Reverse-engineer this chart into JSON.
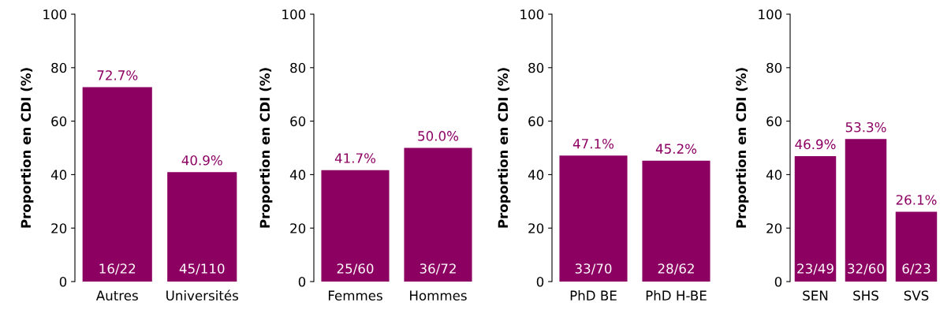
{
  "chart_data": [
    {
      "type": "bar",
      "ylabel": "Proportion en CDI (%)",
      "categories": [
        "Autres",
        "Universités"
      ],
      "values": [
        72.7,
        40.9
      ],
      "color": "#8c0062",
      "value_labels": [
        "72.7%",
        "40.9%"
      ],
      "ylim": [
        0,
        100
      ],
      "yticks": [
        0,
        20,
        40,
        60,
        80,
        100
      ],
      "grid": false,
      "legend": false,
      "annotations": [
        {
          "text": "16/22",
          "x": "Autres",
          "y": 0
        },
        {
          "text": "45/110",
          "x": "Universités",
          "y": 0
        }
      ]
    },
    {
      "type": "bar",
      "ylabel": "Proportion en CDI (%)",
      "categories": [
        "Femmes",
        "Hommes"
      ],
      "values": [
        41.7,
        50.0
      ],
      "color": "#8c0062",
      "value_labels": [
        "41.7%",
        "50.0%"
      ],
      "ylim": [
        0,
        100
      ],
      "yticks": [
        0,
        20,
        40,
        60,
        80,
        100
      ],
      "grid": false,
      "legend": false,
      "annotations": [
        {
          "text": "25/60",
          "x": "Femmes",
          "y": 0
        },
        {
          "text": "36/72",
          "x": "Hommes",
          "y": 0
        }
      ]
    },
    {
      "type": "bar",
      "ylabel": "Proportion en CDI (%)",
      "categories": [
        "PhD BE",
        "PhD H-BE"
      ],
      "values": [
        47.1,
        45.2
      ],
      "color": "#8c0062",
      "value_labels": [
        "47.1%",
        "45.2%"
      ],
      "ylim": [
        0,
        100
      ],
      "yticks": [
        0,
        20,
        40,
        60,
        80,
        100
      ],
      "grid": false,
      "legend": false,
      "annotations": [
        {
          "text": "33/70",
          "x": "PhD BE",
          "y": 0
        },
        {
          "text": "28/62",
          "x": "PhD H-BE",
          "y": 0
        }
      ]
    },
    {
      "type": "bar",
      "ylabel": "Proportion en CDI (%)",
      "categories": [
        "SEN",
        "SHS",
        "SVS"
      ],
      "values": [
        46.9,
        53.3,
        26.1
      ],
      "color": "#8c0062",
      "value_labels": [
        "46.9%",
        "53.3%",
        "26.1%"
      ],
      "ylim": [
        0,
        100
      ],
      "yticks": [
        0,
        20,
        40,
        60,
        80,
        100
      ],
      "grid": false,
      "legend": false,
      "annotations": [
        {
          "text": "23/49",
          "x": "SEN",
          "y": 0
        },
        {
          "text": "32/60",
          "x": "SHS",
          "y": 0
        },
        {
          "text": "6/23",
          "x": "SVS",
          "y": 0
        }
      ]
    }
  ]
}
